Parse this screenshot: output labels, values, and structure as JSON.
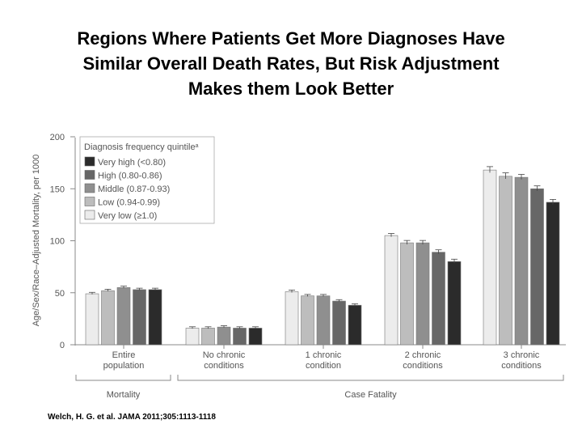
{
  "title_lines": [
    "Regions Where Patients Get More Diagnoses Have",
    "Similar Overall Death Rates, But Risk Adjustment",
    "Makes them Look Better"
  ],
  "citation": "Welch, H. G. et al. JAMA 2011;305:1113-1118",
  "chart_data": {
    "type": "bar",
    "ylabel": "Age/Sex/Race–Adjusted Mortality, per 1000",
    "ylim": [
      0,
      200
    ],
    "yticks": [
      0,
      50,
      100,
      150,
      200
    ],
    "legend_title": "Diagnosis frequency quintile",
    "legend_title_superscript": "a",
    "legend_placement": "top-left",
    "categories": [
      [
        "Entire",
        "population"
      ],
      [
        "No chronic",
        "conditions"
      ],
      [
        "1 chronic",
        "condition"
      ],
      [
        "2 chronic",
        "conditions"
      ],
      [
        "3 chronic",
        "conditions"
      ]
    ],
    "series": [
      {
        "name": "Very low (≥1.0)",
        "color": "#ececec",
        "values": [
          49,
          16,
          51,
          105,
          168
        ],
        "error": [
          0.6,
          0.5,
          0.8,
          1.2,
          2.5
        ]
      },
      {
        "name": "Low (0.94-0.99)",
        "color": "#bdbdbd",
        "values": [
          52,
          16,
          47,
          98,
          162
        ],
        "error": [
          0.6,
          0.5,
          0.6,
          1.5,
          2.5
        ]
      },
      {
        "name": "Middle (0.87-0.93)",
        "color": "#8f8f8f",
        "values": [
          55,
          17,
          47,
          98,
          161
        ],
        "error": [
          0.6,
          0.5,
          0.6,
          1.5,
          2.0
        ]
      },
      {
        "name": "High (0.80-0.86)",
        "color": "#676767",
        "values": [
          53,
          16,
          42,
          89,
          150
        ],
        "error": [
          0.6,
          0.5,
          0.6,
          1.5,
          2.0
        ]
      },
      {
        "name": "Very high (<0.80)",
        "color": "#2b2b2b",
        "values": [
          53,
          16,
          38,
          80,
          137
        ],
        "error": [
          0.6,
          0.5,
          0.6,
          1.5,
          2.0
        ]
      }
    ],
    "legend_order": [
      4,
      3,
      2,
      1,
      0
    ],
    "groups": [
      {
        "label": "Mortality",
        "from": 0,
        "to": 0
      },
      {
        "label": "Case Fatality",
        "from": 1,
        "to": 4
      }
    ]
  }
}
